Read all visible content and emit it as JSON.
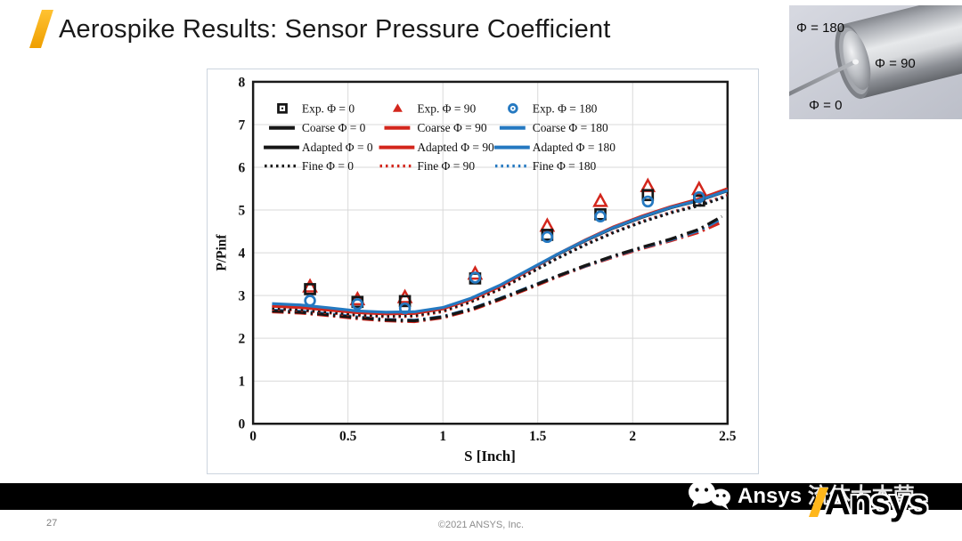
{
  "slide": {
    "title": "Aerospike Results: Sensor Pressure Coefficient"
  },
  "model_image": {
    "label_top": "Φ = 180",
    "label_middle": "Φ = 90",
    "label_bottom": "Φ = 0"
  },
  "footer": {
    "page_number": "27",
    "copyright": "©2021 ANSYS, Inc."
  },
  "watermark": {
    "wechat_text_en": "Ansys ",
    "wechat_text_cn": "流体大本营",
    "logo_text": "Ansys"
  },
  "colors": {
    "phi0": "#161616",
    "phi90": "#d3261c",
    "phi180": "#2579c1",
    "accent_gold": "#ffb71b",
    "grid": "#d9d9d9"
  },
  "chart_data": {
    "type": "line",
    "title": "",
    "xlabel": "S [Inch]",
    "ylabel": "P/Pinf",
    "xlim": [
      0,
      2.5
    ],
    "ylim": [
      0,
      8
    ],
    "xticks": [
      "0",
      "0.5",
      "1",
      "1.5",
      "2",
      "2.5"
    ],
    "yticks": [
      "0",
      "1",
      "2",
      "3",
      "4",
      "5",
      "6",
      "7",
      "8"
    ],
    "grid": true,
    "legend_position": "inside top-left",
    "series": [
      {
        "name": "Coarse Φ = 90",
        "group": "coarse",
        "style": "dashdot",
        "color": "#d3261c",
        "legend": {
          "row": 1,
          "col": 1
        },
        "x": [
          0.1,
          0.25,
          0.4,
          0.55,
          0.7,
          0.85,
          1.0,
          1.15,
          1.3,
          1.45,
          1.6,
          1.75,
          1.9,
          2.05,
          2.2,
          2.35,
          2.47
        ],
        "y": [
          2.62,
          2.59,
          2.53,
          2.46,
          2.41,
          2.39,
          2.48,
          2.66,
          2.9,
          3.16,
          3.43,
          3.68,
          3.9,
          4.1,
          4.28,
          4.48,
          4.72
        ]
      },
      {
        "name": "Coarse Φ = 180",
        "group": "coarse",
        "style": "dashdot",
        "color": "#2579c1",
        "legend": {
          "row": 1,
          "col": 2
        },
        "x": [
          0.1,
          0.25,
          0.4,
          0.55,
          0.7,
          0.85,
          1.0,
          1.15,
          1.3,
          1.45,
          1.6,
          1.75,
          1.9,
          2.05,
          2.2,
          2.35,
          2.47
        ],
        "y": [
          2.66,
          2.63,
          2.57,
          2.5,
          2.44,
          2.42,
          2.51,
          2.69,
          2.93,
          3.19,
          3.45,
          3.69,
          3.92,
          4.12,
          4.3,
          4.52,
          4.8
        ]
      },
      {
        "name": "Coarse Φ = 0",
        "group": "coarse",
        "style": "dashdot",
        "color": "#161616",
        "legend": {
          "row": 1,
          "col": 0
        },
        "x": [
          0.1,
          0.25,
          0.4,
          0.55,
          0.7,
          0.85,
          1.0,
          1.15,
          1.3,
          1.45,
          1.6,
          1.75,
          1.9,
          2.05,
          2.2,
          2.35,
          2.47
        ],
        "y": [
          2.64,
          2.61,
          2.55,
          2.48,
          2.43,
          2.41,
          2.5,
          2.68,
          2.92,
          3.18,
          3.45,
          3.7,
          3.93,
          4.13,
          4.32,
          4.55,
          4.85
        ]
      },
      {
        "name": "Fine Φ = 90",
        "group": "fine",
        "style": "dotted",
        "color": "#d3261c",
        "legend": {
          "row": 3,
          "col": 1
        },
        "x": [
          0.1,
          0.25,
          0.4,
          0.55,
          0.7,
          0.85,
          1.0,
          1.15,
          1.3,
          1.45,
          1.6,
          1.75,
          1.9,
          2.05,
          2.2,
          2.35,
          2.5
        ],
        "y": [
          2.68,
          2.65,
          2.59,
          2.53,
          2.5,
          2.51,
          2.62,
          2.85,
          3.14,
          3.5,
          3.87,
          4.2,
          4.49,
          4.74,
          4.95,
          5.13,
          5.35
        ]
      },
      {
        "name": "Fine Φ = 180",
        "group": "fine",
        "style": "dotted",
        "color": "#2579c1",
        "legend": {
          "row": 3,
          "col": 2
        },
        "x": [
          0.1,
          0.25,
          0.4,
          0.55,
          0.7,
          0.85,
          1.0,
          1.15,
          1.3,
          1.45,
          1.6,
          1.75,
          1.9,
          2.05,
          2.2,
          2.35,
          2.5
        ],
        "y": [
          2.73,
          2.7,
          2.63,
          2.57,
          2.54,
          2.55,
          2.66,
          2.88,
          3.17,
          3.52,
          3.87,
          4.19,
          4.48,
          4.73,
          4.94,
          5.11,
          5.33
        ]
      },
      {
        "name": "Fine Φ = 0",
        "group": "fine",
        "style": "dotted",
        "color": "#161616",
        "legend": {
          "row": 3,
          "col": 0
        },
        "x": [
          0.1,
          0.25,
          0.4,
          0.55,
          0.7,
          0.85,
          1.0,
          1.15,
          1.3,
          1.45,
          1.6,
          1.75,
          1.9,
          2.05,
          2.2,
          2.35,
          2.5
        ],
        "y": [
          2.7,
          2.67,
          2.61,
          2.55,
          2.52,
          2.53,
          2.64,
          2.86,
          3.15,
          3.5,
          3.86,
          4.18,
          4.47,
          4.72,
          4.93,
          5.1,
          5.32
        ]
      },
      {
        "name": "Adapted Φ = 0",
        "group": "adapted",
        "style": "solid",
        "color": "#161616",
        "legend": {
          "row": 2,
          "col": 0
        },
        "x": [
          0.1,
          0.25,
          0.4,
          0.55,
          0.7,
          0.85,
          1.0,
          1.15,
          1.3,
          1.45,
          1.6,
          1.75,
          1.9,
          2.05,
          2.2,
          2.35,
          2.5
        ],
        "y": [
          2.77,
          2.74,
          2.68,
          2.62,
          2.59,
          2.6,
          2.7,
          2.92,
          3.22,
          3.58,
          3.95,
          4.28,
          4.58,
          4.83,
          5.05,
          5.22,
          5.45
        ]
      },
      {
        "name": "Adapted Φ = 90",
        "group": "adapted",
        "style": "solid",
        "color": "#d3261c",
        "legend": {
          "row": 2,
          "col": 1
        },
        "x": [
          0.1,
          0.25,
          0.4,
          0.55,
          0.7,
          0.85,
          1.0,
          1.15,
          1.3,
          1.45,
          1.6,
          1.75,
          1.9,
          2.05,
          2.2,
          2.35,
          2.5
        ],
        "y": [
          2.75,
          2.72,
          2.66,
          2.6,
          2.57,
          2.58,
          2.69,
          2.91,
          3.21,
          3.58,
          3.96,
          4.3,
          4.61,
          4.86,
          5.08,
          5.26,
          5.5
        ]
      },
      {
        "name": "Adapted Φ = 180",
        "group": "adapted",
        "style": "solid",
        "color": "#2579c1",
        "legend": {
          "row": 2,
          "col": 2
        },
        "x": [
          0.1,
          0.25,
          0.4,
          0.55,
          0.7,
          0.85,
          1.0,
          1.15,
          1.3,
          1.45,
          1.6,
          1.75,
          1.9,
          2.05,
          2.2,
          2.35,
          2.5
        ],
        "y": [
          2.81,
          2.78,
          2.71,
          2.64,
          2.61,
          2.62,
          2.72,
          2.94,
          3.24,
          3.6,
          3.96,
          4.29,
          4.59,
          4.84,
          5.06,
          5.23,
          5.46
        ]
      },
      {
        "name": "Exp. Φ = 90",
        "group": "exp",
        "style": "marker",
        "marker": "triangle",
        "color": "#d3261c",
        "legend": {
          "row": 0,
          "col": 1
        },
        "x": [
          0.3,
          0.55,
          0.8,
          1.17,
          1.55,
          1.83,
          2.08,
          2.35
        ],
        "y": [
          3.2,
          2.9,
          2.95,
          3.5,
          4.62,
          5.2,
          5.55,
          5.48
        ]
      },
      {
        "name": "Exp. Φ = 0",
        "group": "exp",
        "style": "marker",
        "marker": "square",
        "color": "#161616",
        "legend": {
          "row": 0,
          "col": 0
        },
        "x": [
          0.3,
          0.55,
          0.8,
          1.17,
          1.55,
          1.83,
          2.08,
          2.35
        ],
        "y": [
          3.15,
          2.85,
          2.87,
          3.4,
          4.42,
          4.9,
          5.35,
          5.22
        ]
      },
      {
        "name": "Exp. Φ = 180",
        "group": "exp",
        "style": "marker",
        "marker": "circle",
        "color": "#2579c1",
        "legend": {
          "row": 0,
          "col": 2
        },
        "x": [
          0.3,
          0.55,
          0.8,
          1.17,
          1.55,
          1.83,
          2.08,
          2.35
        ],
        "y": [
          2.88,
          2.8,
          2.7,
          3.42,
          4.37,
          4.85,
          5.2,
          5.3
        ]
      }
    ]
  }
}
